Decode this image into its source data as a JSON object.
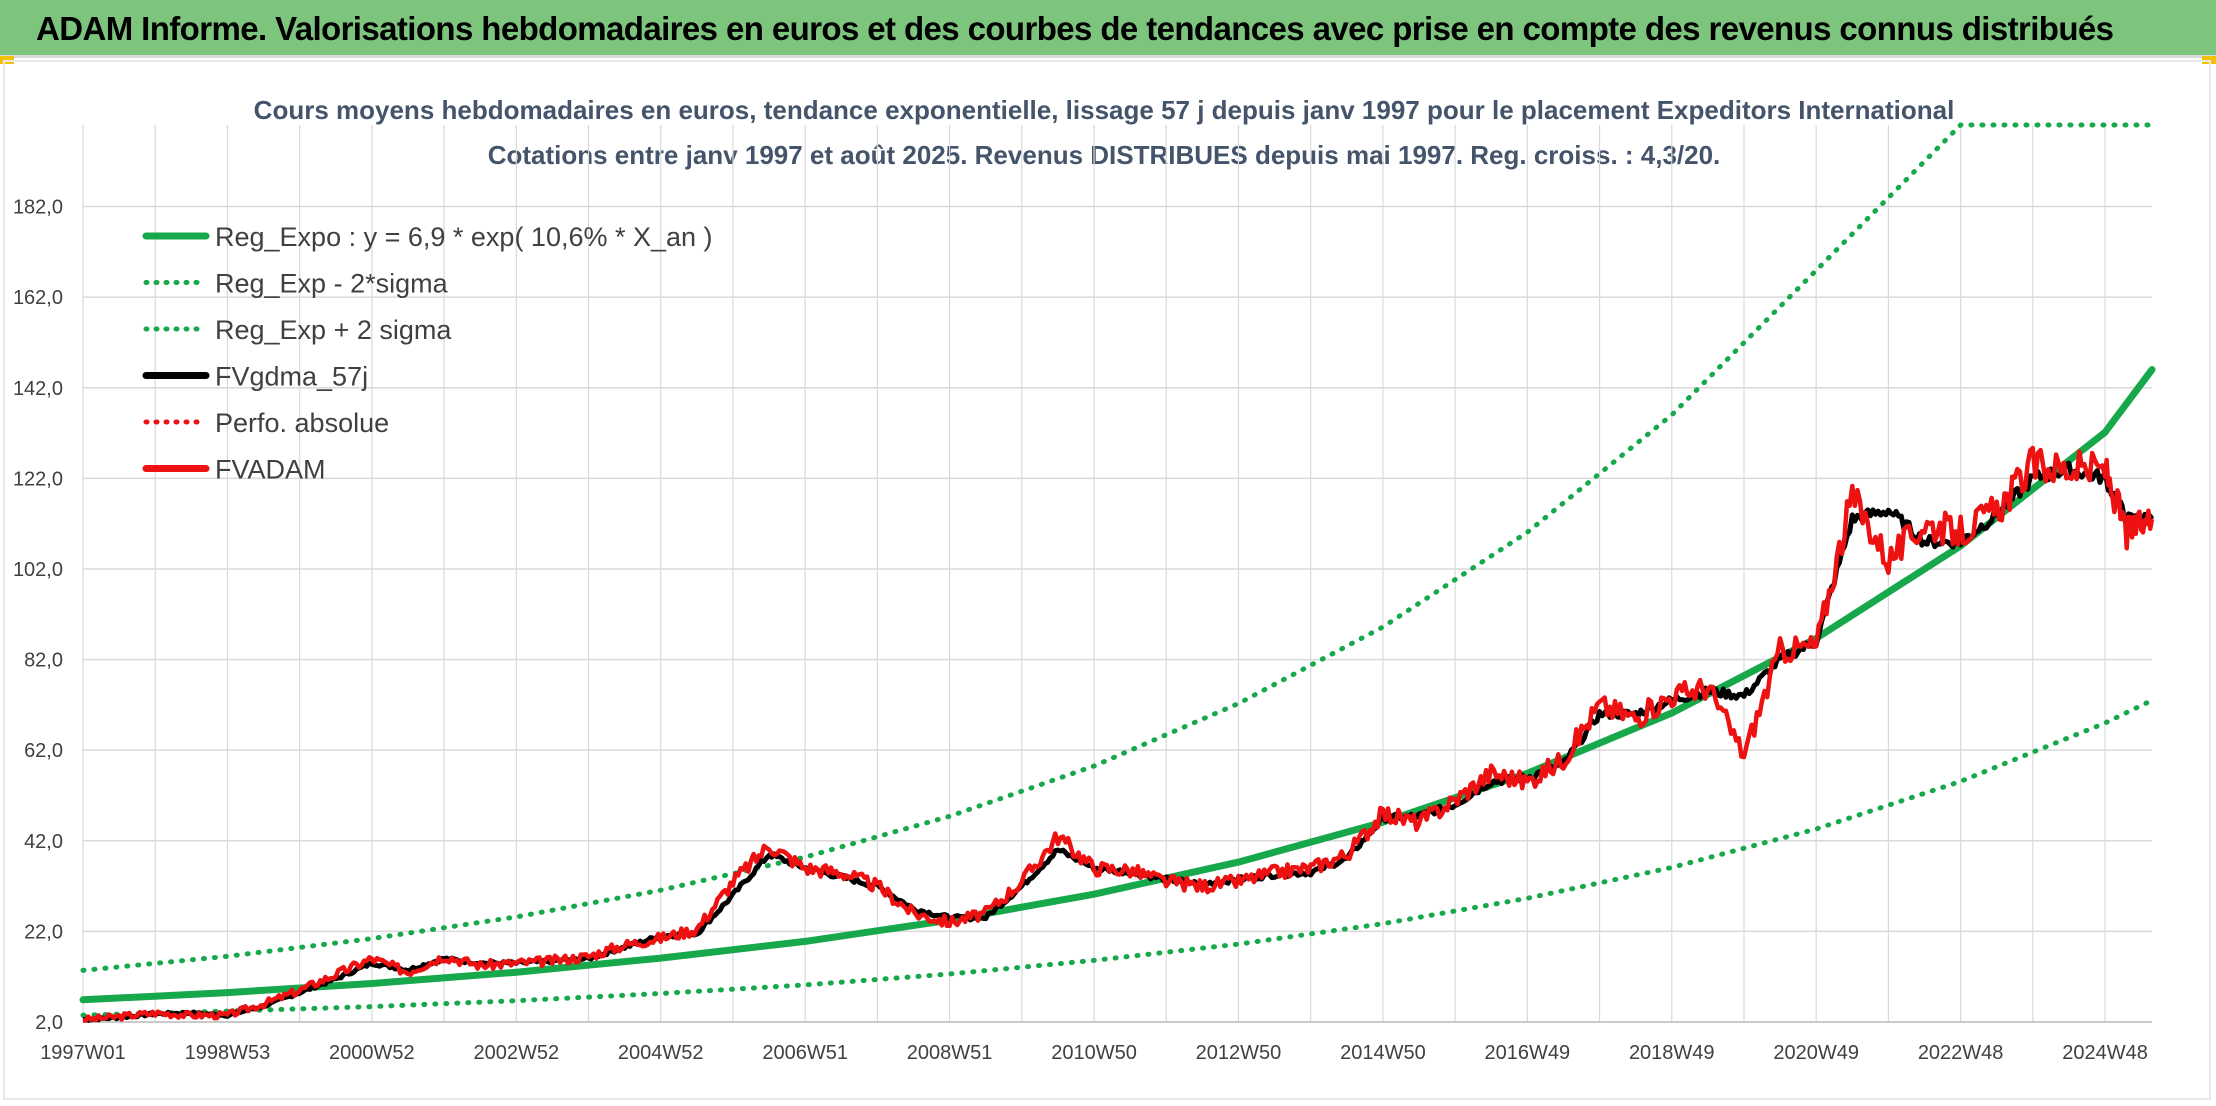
{
  "header": {
    "title": "ADAM Informe. Valorisations hebdomadaires en euros et des courbes de tendances avec prise en compte des revenus connus distribués"
  },
  "colors": {
    "header_bg": "#7dc57d",
    "reg_green": "#16a84a",
    "black": "#000000",
    "red": "#ee1111",
    "grid": "#d9d9d9"
  },
  "chart_data": {
    "type": "line",
    "title": "Cours moyens hebdomadaires en euros, tendance exponentielle, lissage 57 j depuis janv 1997 pour le placement Expeditors International",
    "subtitle": "Cotations entre janv 1997 et août 2025. Revenus DISTRIBUES depuis mai 1997. Reg. croiss. : 4,3/20.",
    "xlabel": "",
    "ylabel": "",
    "grid": true,
    "legend_position": "top-left",
    "x_range": [
      1997.0,
      2025.65
    ],
    "ylim": [
      2.0,
      200.0
    ],
    "y_ticks": [
      "2,0",
      "22,0",
      "42,0",
      "62,0",
      "82,0",
      "102,0",
      "122,0",
      "142,0",
      "162,0",
      "182,0"
    ],
    "y_tick_values": [
      2,
      22,
      42,
      62,
      82,
      102,
      122,
      142,
      162,
      182
    ],
    "x_ticks": [
      "1997W01",
      "1998W53",
      "2000W52",
      "2002W52",
      "2004W52",
      "2006W51",
      "2008W51",
      "2010W50",
      "2012W50",
      "2014W50",
      "2016W49",
      "2018W49",
      "2020W49",
      "2022W48",
      "2024W48"
    ],
    "x_tick_values": [
      1997.0,
      1999.0,
      2001.0,
      2003.0,
      2005.0,
      2007.0,
      2009.0,
      2011.0,
      2013.0,
      2015.0,
      2017.0,
      2019.0,
      2021.0,
      2023.0,
      2025.0
    ],
    "legend": [
      {
        "label": "Reg_Expo : y = 6,9 * exp( 10,6% *  X_an )",
        "color": "#16a84a",
        "style": "solid",
        "width": 7
      },
      {
        "label": "Reg_Exp - 2*sigma",
        "color": "#16a84a",
        "style": "dotted",
        "width": 5
      },
      {
        "label": "Reg_Exp + 2 sigma",
        "color": "#16a84a",
        "style": "dotted",
        "width": 5
      },
      {
        "label": "FVgdma_57j",
        "color": "#000000",
        "style": "solid",
        "width": 5
      },
      {
        "label": "Perfo. absolue",
        "color": "#ee1111",
        "style": "dotted",
        "width": 4
      },
      {
        "label": "FVADAM",
        "color": "#ee1111",
        "style": "solid",
        "width": 6
      }
    ],
    "series": [
      {
        "name": "Reg_Expo : y = 6,9 * exp( 10,6% *  X_an )",
        "x": [
          1997,
          1999,
          2001,
          2003,
          2005,
          2007,
          2009,
          2011,
          2013,
          2015,
          2017,
          2019,
          2021,
          2023,
          2025,
          2025.65
        ],
        "y": [
          6.9,
          8.5,
          10.5,
          13.0,
          16.1,
          19.8,
          24.5,
          30.2,
          37.3,
          46.1,
          56.9,
          70.2,
          86.7,
          107.1,
          132.2,
          146.0
        ]
      },
      {
        "name": "Reg_Exp - 2*sigma",
        "x": [
          1997,
          1999,
          2001,
          2003,
          2005,
          2007,
          2009,
          2011,
          2013,
          2015,
          2017,
          2019,
          2021,
          2023,
          2025,
          2025.65
        ],
        "y": [
          3.5,
          4.4,
          5.4,
          6.7,
          8.3,
          10.2,
          12.6,
          15.6,
          19.2,
          23.7,
          29.3,
          36.1,
          44.6,
          55.1,
          68.0,
          73.0
        ]
      },
      {
        "name": "Reg_Exp + 2 sigma",
        "x": [
          1997,
          1999,
          2001,
          2003,
          2005,
          2007,
          2009,
          2011,
          2013,
          2015,
          2017,
          2019,
          2021,
          2023,
          2025,
          2025.65
        ],
        "y": [
          13.4,
          16.5,
          20.4,
          25.2,
          31.1,
          38.4,
          47.4,
          58.5,
          72.3,
          89.2,
          110.1,
          136.0,
          167.9,
          200.0,
          200.0,
          200.0
        ]
      },
      {
        "name": "FVgdma_57j",
        "x": [
          1997.0,
          1997.5,
          1998.0,
          1998.5,
          1999.0,
          1999.5,
          2000.0,
          2000.5,
          2001.0,
          2001.5,
          2002.0,
          2002.5,
          2003.0,
          2003.5,
          2004.0,
          2004.5,
          2005.0,
          2005.5,
          2006.0,
          2006.5,
          2007.0,
          2007.5,
          2008.0,
          2008.5,
          2009.0,
          2009.5,
          2010.0,
          2010.5,
          2011.0,
          2011.5,
          2012.0,
          2012.5,
          2013.0,
          2013.5,
          2014.0,
          2014.5,
          2015.0,
          2015.5,
          2016.0,
          2016.5,
          2017.0,
          2017.5,
          2018.0,
          2018.5,
          2019.0,
          2019.5,
          2020.0,
          2020.5,
          2021.0,
          2021.5,
          2022.0,
          2022.5,
          2023.0,
          2023.5,
          2024.0,
          2024.5,
          2025.0,
          2025.3,
          2025.65
        ],
        "y": [
          2.5,
          3.0,
          3.8,
          4.0,
          3.5,
          5.5,
          8.5,
          11.5,
          15.0,
          13.5,
          16.0,
          15.0,
          15.0,
          15.5,
          16.0,
          18.5,
          21.0,
          21.5,
          30.0,
          39.0,
          36.0,
          34.0,
          32.0,
          27.0,
          25.0,
          25.0,
          32.0,
          40.0,
          36.0,
          35.0,
          33.5,
          32.5,
          33.5,
          34.5,
          35.0,
          38.0,
          47.0,
          47.5,
          50.0,
          55.0,
          56.0,
          59.0,
          70.0,
          70.0,
          73.0,
          75.0,
          74.0,
          82.0,
          86.0,
          113.0,
          115.0,
          108.0,
          108.0,
          114.0,
          122.0,
          124.0,
          122.0,
          113.0,
          113.0
        ]
      },
      {
        "name": "FVADAM",
        "x": [
          1997.0,
          1997.5,
          1998.0,
          1998.5,
          1999.0,
          1999.5,
          2000.0,
          2000.5,
          2001.0,
          2001.5,
          2002.0,
          2002.5,
          2003.0,
          2003.5,
          2004.0,
          2004.5,
          2005.0,
          2005.5,
          2006.0,
          2006.5,
          2007.0,
          2007.5,
          2008.0,
          2008.5,
          2009.0,
          2009.5,
          2010.0,
          2010.5,
          2011.0,
          2011.5,
          2012.0,
          2012.5,
          2013.0,
          2013.5,
          2014.0,
          2014.5,
          2015.0,
          2015.5,
          2016.0,
          2016.5,
          2017.0,
          2017.5,
          2018.0,
          2018.5,
          2019.0,
          2019.5,
          2020.0,
          2020.5,
          2021.0,
          2021.5,
          2022.0,
          2022.5,
          2023.0,
          2023.5,
          2024.0,
          2024.5,
          2025.0,
          2025.3,
          2025.65
        ],
        "y": [
          2.5,
          3.2,
          4.0,
          3.5,
          3.5,
          6.0,
          9.0,
          12.5,
          16.0,
          13.0,
          16.5,
          14.5,
          15.0,
          15.5,
          16.5,
          19.0,
          20.5,
          22.5,
          33.0,
          41.0,
          36.0,
          35.0,
          32.0,
          26.0,
          24.0,
          26.0,
          33.0,
          43.0,
          36.0,
          35.5,
          33.0,
          32.0,
          33.0,
          35.0,
          36.0,
          39.0,
          48.0,
          46.0,
          51.0,
          57.0,
          55.0,
          60.0,
          72.0,
          69.0,
          74.0,
          76.0,
          61.0,
          84.0,
          85.0,
          118.0,
          104.0,
          112.0,
          110.0,
          115.0,
          125.0,
          124.0,
          124.0,
          110.0,
          113.0
        ]
      }
    ]
  }
}
